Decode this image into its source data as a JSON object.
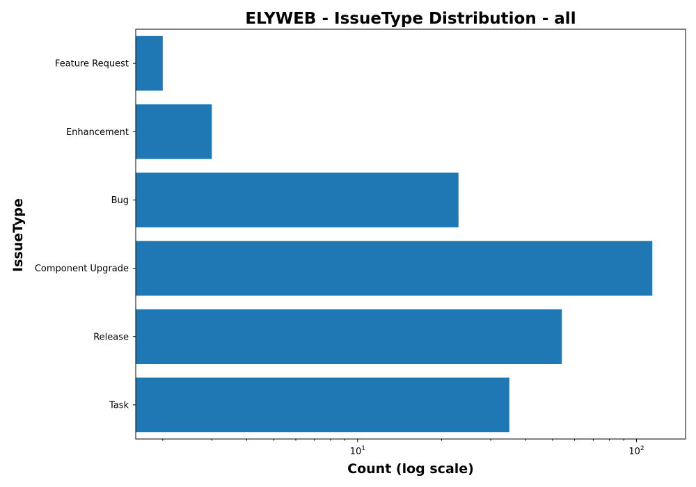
{
  "chart_data": {
    "type": "bar",
    "orientation": "horizontal",
    "title": "ELYWEB - IssueType Distribution - all",
    "xlabel": "Count (log scale)",
    "ylabel": "IssueType",
    "xscale": "log",
    "xlim": [
      1.6,
      150
    ],
    "categories": [
      "Feature Request",
      "Enhancement",
      "Bug",
      "Component Upgrade",
      "Release",
      "Task"
    ],
    "values": [
      2,
      3,
      23,
      114,
      54,
      35
    ],
    "x_ticks": [
      {
        "value": 10,
        "base": "10",
        "exp": "1"
      },
      {
        "value": 100,
        "base": "10",
        "exp": "2"
      }
    ],
    "color": "#1f77b4",
    "grid": false,
    "legend": "none"
  }
}
